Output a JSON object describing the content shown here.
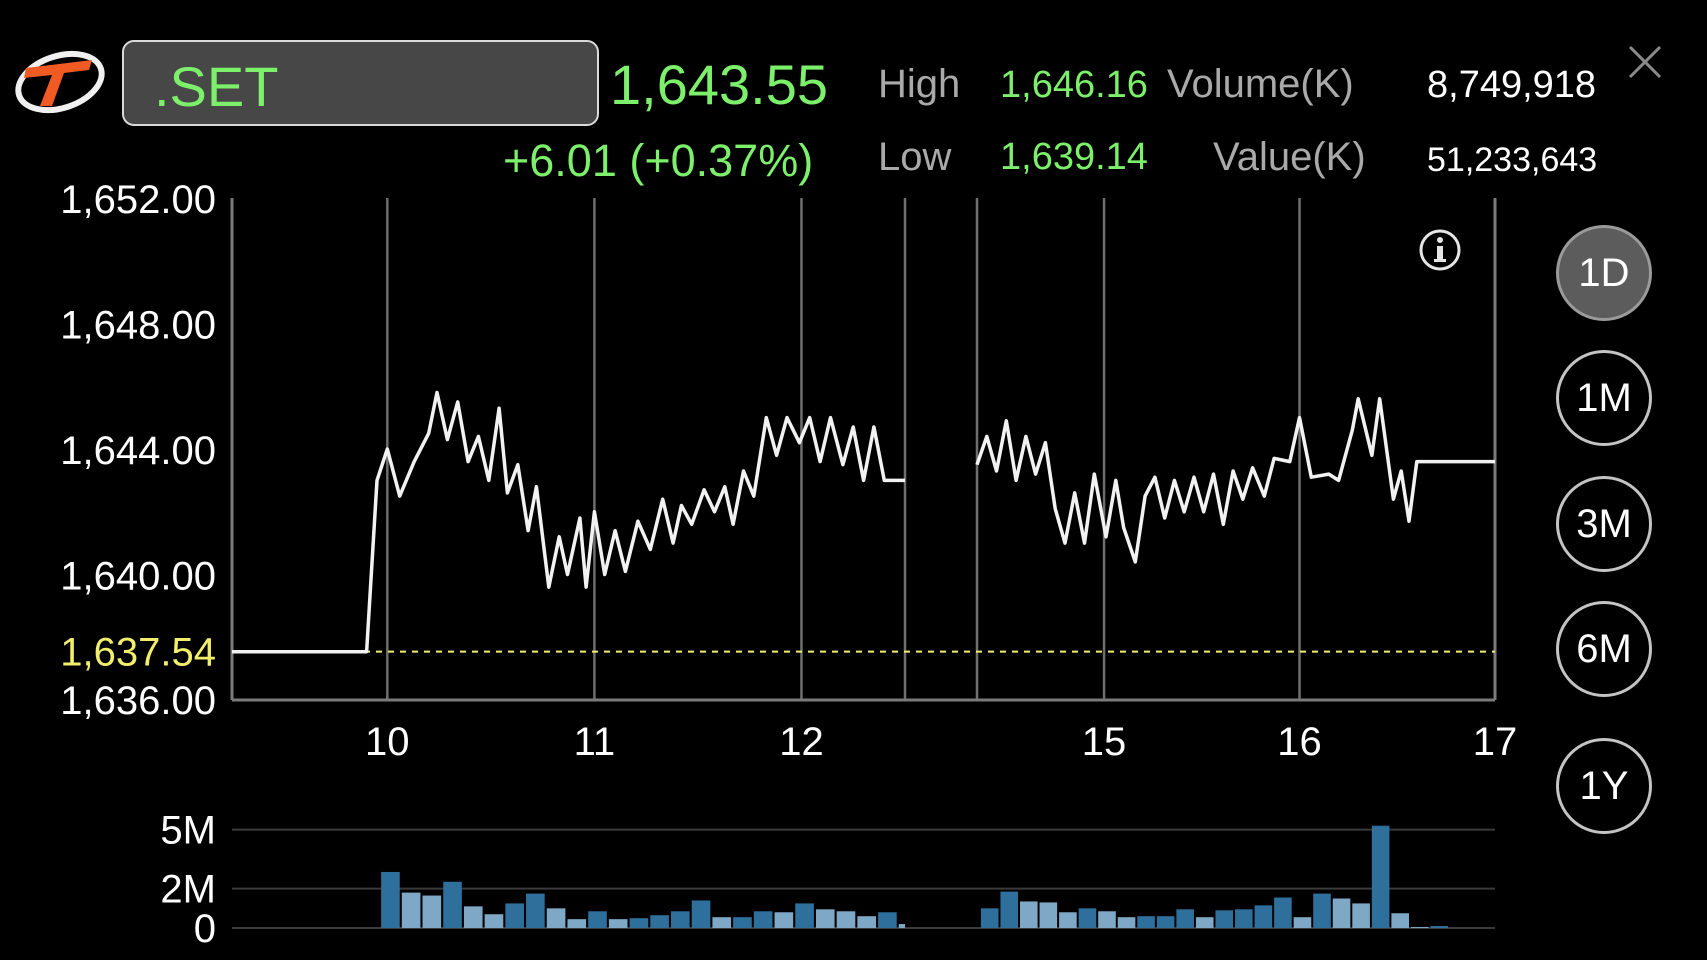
{
  "header": {
    "symbol": ".SET",
    "last": "1,643.55",
    "change": "+6.01 (+0.37%)",
    "high_label": "High",
    "high_value": "1,646.16",
    "low_label": "Low",
    "low_value": "1,639.14",
    "volume_label": "Volume(K)",
    "volume_value": "8,749,918",
    "value_label": "Value(K)",
    "value_value": "51,233,643"
  },
  "colors": {
    "green": "#7cf06a",
    "prev_close": "#f2ee6b",
    "volume_up": "#2f6f9c",
    "volume_down": "#7ea8c6"
  },
  "periods": [
    {
      "label": "1D",
      "active": true
    },
    {
      "label": "1M",
      "active": false
    },
    {
      "label": "3M",
      "active": false
    },
    {
      "label": "6M",
      "active": false
    },
    {
      "label": "1Y",
      "active": false
    }
  ],
  "chart_data": [
    {
      "type": "line",
      "y_ticks": [
        "1,652.00",
        "1,648.00",
        "1,644.00",
        "1,640.00",
        "1,636.00"
      ],
      "y_tick_values": [
        1652,
        1648,
        1644,
        1640,
        1636
      ],
      "ylim": [
        1636,
        1652
      ],
      "x_ticks": [
        "10",
        "11",
        "12",
        "15",
        "16",
        "17"
      ],
      "xlim": [
        9.25,
        17
      ],
      "prev_close": 1637.54,
      "prev_close_label": "1,637.54",
      "grid": "vertical",
      "series": [
        {
          "segments": [
            [
              [
                9.25,
                1637.54
              ],
              [
                9.9,
                1637.54
              ],
              [
                9.95,
                1643
              ],
              [
                10.0,
                1644
              ],
              [
                10.06,
                1642.5
              ],
              [
                10.13,
                1643.6
              ],
              [
                10.2,
                1644.5
              ],
              [
                10.24,
                1645.8
              ],
              [
                10.29,
                1644.3
              ],
              [
                10.34,
                1645.5
              ],
              [
                10.39,
                1643.6
              ],
              [
                10.44,
                1644.4
              ],
              [
                10.49,
                1643
              ],
              [
                10.54,
                1645.3
              ],
              [
                10.58,
                1642.6
              ],
              [
                10.63,
                1643.5
              ],
              [
                10.68,
                1641.4
              ],
              [
                10.72,
                1642.8
              ],
              [
                10.78,
                1639.6
              ],
              [
                10.83,
                1641.2
              ],
              [
                10.87,
                1640
              ],
              [
                10.93,
                1641.8
              ],
              [
                10.96,
                1639.6
              ],
              [
                11.0,
                1642
              ],
              [
                11.05,
                1640
              ],
              [
                11.1,
                1641.4
              ],
              [
                11.15,
                1640.1
              ],
              [
                11.21,
                1641.7
              ],
              [
                11.27,
                1640.8
              ],
              [
                11.33,
                1642.4
              ],
              [
                11.38,
                1641
              ],
              [
                11.42,
                1642.2
              ],
              [
                11.47,
                1641.6
              ],
              [
                11.53,
                1642.7
              ],
              [
                11.58,
                1642
              ],
              [
                11.63,
                1642.8
              ],
              [
                11.67,
                1641.6
              ],
              [
                11.72,
                1643.3
              ],
              [
                11.77,
                1642.5
              ],
              [
                11.83,
                1645
              ],
              [
                11.88,
                1643.8
              ],
              [
                11.93,
                1645
              ],
              [
                11.99,
                1644.2
              ],
              [
                12.04,
                1645
              ],
              [
                12.09,
                1643.6
              ],
              [
                12.14,
                1645
              ],
              [
                12.2,
                1643.5
              ],
              [
                12.25,
                1644.7
              ],
              [
                12.3,
                1643
              ],
              [
                12.35,
                1644.7
              ],
              [
                12.4,
                1643
              ],
              [
                12.45,
                1643
              ],
              [
                12.5,
                1643
              ]
            ],
            [
              [
                14.35,
                1643.5
              ],
              [
                14.4,
                1644.4
              ],
              [
                14.45,
                1643.3
              ],
              [
                14.5,
                1644.9
              ],
              [
                14.55,
                1643
              ],
              [
                14.6,
                1644.4
              ],
              [
                14.65,
                1643.2
              ],
              [
                14.7,
                1644.2
              ],
              [
                14.75,
                1642.1
              ],
              [
                14.8,
                1641
              ],
              [
                14.85,
                1642.6
              ],
              [
                14.9,
                1641
              ],
              [
                14.95,
                1643.2
              ],
              [
                15.01,
                1641.2
              ],
              [
                15.06,
                1643
              ],
              [
                15.1,
                1641.5
              ],
              [
                15.16,
                1640.4
              ],
              [
                15.21,
                1642.5
              ],
              [
                15.26,
                1643.1
              ],
              [
                15.31,
                1641.8
              ],
              [
                15.36,
                1643
              ],
              [
                15.41,
                1642
              ],
              [
                15.46,
                1643.1
              ],
              [
                15.51,
                1642
              ],
              [
                15.56,
                1643.2
              ],
              [
                15.61,
                1641.6
              ],
              [
                15.66,
                1643.3
              ],
              [
                15.71,
                1642.4
              ],
              [
                15.76,
                1643.4
              ],
              [
                15.82,
                1642.5
              ],
              [
                15.87,
                1643.7
              ],
              [
                15.95,
                1643.6
              ],
              [
                16.0,
                1645
              ],
              [
                16.06,
                1643.1
              ],
              [
                16.15,
                1643.2
              ],
              [
                16.2,
                1643
              ],
              [
                16.27,
                1644.6
              ],
              [
                16.3,
                1645.6
              ],
              [
                16.37,
                1643.8
              ],
              [
                16.41,
                1645.6
              ],
              [
                16.48,
                1642.4
              ],
              [
                16.52,
                1643.3
              ],
              [
                16.56,
                1641.7
              ],
              [
                16.6,
                1643.6
              ],
              [
                17.0,
                1643.6
              ]
            ]
          ]
        }
      ]
    },
    {
      "type": "bar",
      "y_ticks": [
        "5M",
        "2M",
        "0"
      ],
      "y_tick_values": [
        5,
        2,
        0
      ],
      "ylim": [
        0,
        6
      ],
      "unit": "M",
      "groups": [
        {
          "start_x": 10.0,
          "step": 0.1,
          "values": [
            2.85,
            1.8,
            1.65,
            2.35,
            1.1,
            0.7,
            1.25,
            1.75,
            1.0,
            0.45,
            0.85,
            0.45,
            0.5,
            0.65,
            0.85,
            1.4,
            0.55,
            0.55,
            0.85,
            0.8,
            1.25,
            0.95,
            0.85,
            0.6,
            0.8,
            0.2
          ]
        },
        {
          "start_x": 14.4,
          "step": 0.1,
          "values": [
            1.0,
            1.85,
            1.35,
            1.3,
            0.8,
            1.0,
            0.85,
            0.55,
            0.6,
            0.6,
            0.95,
            0.55,
            0.9,
            0.95,
            1.15,
            1.55,
            0.55,
            1.75,
            1.5,
            1.25,
            5.2,
            0.75,
            0.05,
            0.1
          ]
        }
      ]
    }
  ]
}
